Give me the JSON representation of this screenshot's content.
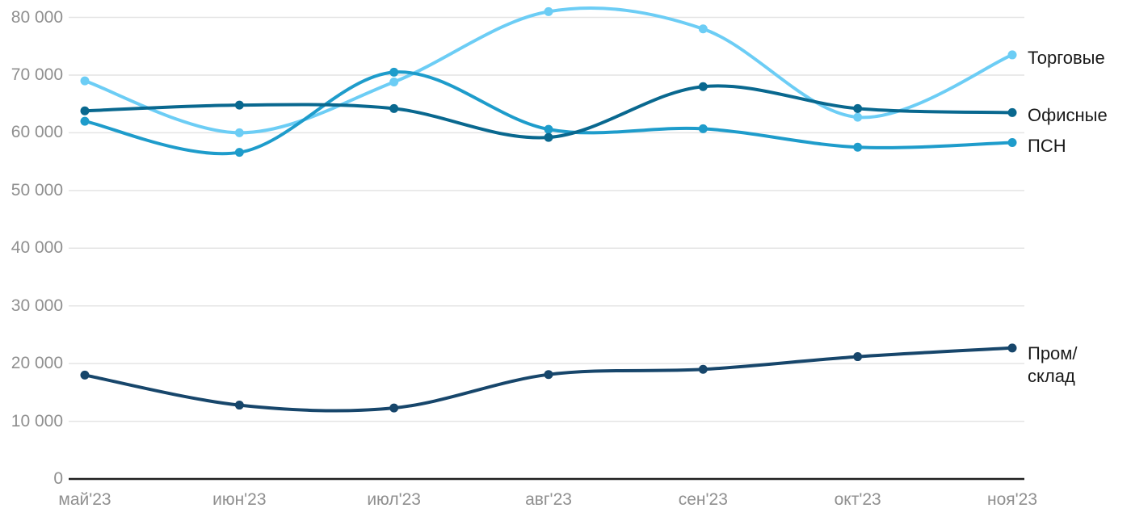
{
  "chart_data": {
    "type": "line",
    "title": "",
    "xlabel": "",
    "ylabel": "",
    "categories": [
      "май'23",
      "июн'23",
      "июл'23",
      "авг'23",
      "сен'23",
      "окт'23",
      "ноя'23"
    ],
    "series": [
      {
        "name": "Торговые",
        "color": "#6CCDF5",
        "values": [
          69000,
          60000,
          68800,
          81000,
          78000,
          62700,
          73500
        ],
        "label_lines": [
          "Торговые"
        ]
      },
      {
        "name": "Офисные",
        "color": "#09688F",
        "values": [
          63800,
          64800,
          64200,
          59200,
          68000,
          64200,
          63500
        ],
        "label_lines": [
          "Офисные"
        ]
      },
      {
        "name": "ПСН",
        "color": "#1E9CCB",
        "values": [
          62000,
          56600,
          70500,
          60600,
          60700,
          57500,
          58300
        ],
        "label_lines": [
          "ПСН"
        ]
      },
      {
        "name": "Пром/склад",
        "color": "#17466B",
        "values": [
          18000,
          12800,
          12300,
          18100,
          19000,
          21200,
          22700
        ],
        "label_lines": [
          "Пром/",
          "склад"
        ]
      }
    ],
    "ylim": [
      0,
      81000
    ],
    "yticks": [
      0,
      10000,
      20000,
      30000,
      40000,
      50000,
      60000,
      70000,
      80000
    ],
    "ytick_labels": [
      "0",
      "10 000",
      "20 000",
      "30 000",
      "40 000",
      "50 000",
      "60 000",
      "70 000",
      "80 000"
    ],
    "grid": "horizontal",
    "legend_position": "right-of-line-ends",
    "markers": "filled-circle-at-each-point"
  },
  "colors": {
    "background": "#ffffff",
    "gridline": "#e4e4e4",
    "axis_line": "#1f1f1f",
    "tick_text": "#8f8f8f",
    "label_text": "#1a1a1a"
  }
}
